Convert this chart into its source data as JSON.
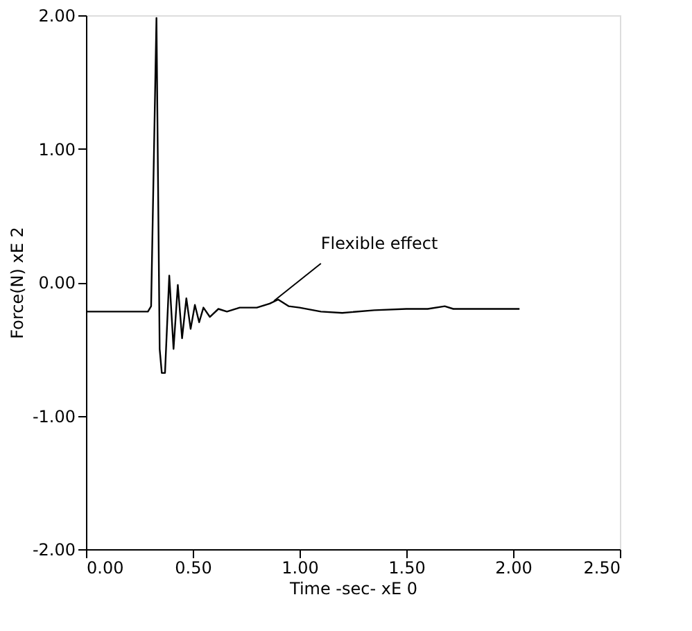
{
  "chart_data": {
    "type": "line",
    "xlabel": "Time   -sec-  xE 0",
    "ylabel": "Force(N)  xE 2",
    "xlim": [
      0,
      2.5
    ],
    "ylim": [
      -2,
      2
    ],
    "xticks": [
      {
        "value": 0,
        "label": "0.00"
      },
      {
        "value": 0.5,
        "label": "0.50"
      },
      {
        "value": 1,
        "label": "1.00"
      },
      {
        "value": 1.5,
        "label": "1.50"
      },
      {
        "value": 2,
        "label": "2.00"
      },
      {
        "value": 2.5,
        "label": "2.50"
      }
    ],
    "yticks": [
      {
        "value": -2,
        "label": "-2.00"
      },
      {
        "value": -1,
        "label": "-1.00"
      },
      {
        "value": 0,
        "label": "0.00"
      },
      {
        "value": 1,
        "label": "1.00"
      },
      {
        "value": 2,
        "label": "2.00"
      }
    ],
    "grid": false,
    "marker": "none",
    "line_style": "solid",
    "series": [
      {
        "color": "#000000",
        "x": [
          0,
          0.29,
          0.305,
          0.33,
          0.345,
          0.355,
          0.37,
          0.39,
          0.41,
          0.43,
          0.45,
          0.47,
          0.49,
          0.51,
          0.53,
          0.55,
          0.58,
          0.62,
          0.66,
          0.72,
          0.8,
          0.86,
          0.9,
          0.95,
          1.0,
          1.1,
          1.2,
          1.35,
          1.5,
          1.6,
          1.68,
          1.72,
          2.03
        ],
        "values": [
          -0.22,
          -0.22,
          -0.18,
          1.98,
          -0.5,
          -0.68,
          -0.68,
          0.05,
          -0.5,
          -0.02,
          -0.42,
          -0.12,
          -0.35,
          -0.17,
          -0.3,
          -0.19,
          -0.26,
          -0.2,
          -0.22,
          -0.19,
          -0.19,
          -0.16,
          -0.13,
          -0.18,
          -0.19,
          -0.22,
          -0.23,
          -0.21,
          -0.2,
          -0.2,
          -0.18,
          -0.2,
          -0.2
        ]
      }
    ],
    "annotations": [
      {
        "text": "Flexible effect",
        "x": 0.88,
        "y": -0.14
      }
    ]
  }
}
